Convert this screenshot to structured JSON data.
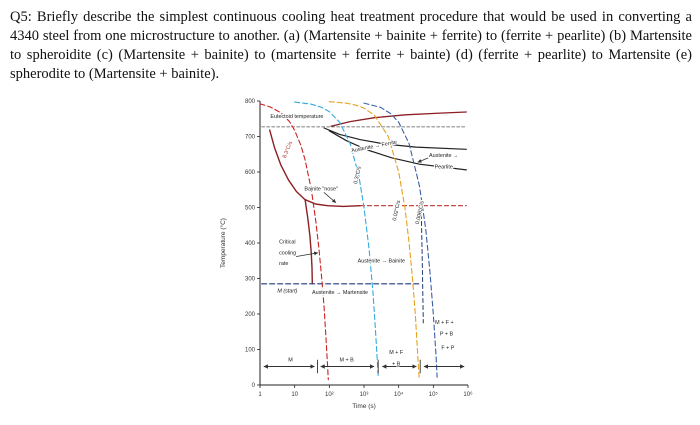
{
  "question": {
    "text": "Q5: Briefly describe the simplest continuous cooling heat treatment procedure that would be used in converting a 4340 steel from one microstructure to another. (a) (Martensite + bainite + ferrite) to (ferrite + pearlite) (b) Martensite to spheroidite (c) (Martensite + bainite) to (martensite + ferrite + bainte) (d) (ferrite + pearlite) to Martensite (e) spherodite to (Martensite + bainite)."
  },
  "chart_data": {
    "type": "line",
    "title": "",
    "xlabel": "Time (s)",
    "ylabel": "Temperature (°C)",
    "x_scale": "log",
    "xlim_log": [
      0,
      6
    ],
    "ylim": [
      0,
      800
    ],
    "x_tick_labels": [
      "1",
      "10",
      "10²",
      "10³",
      "10⁴",
      "10⁵",
      "10⁶"
    ],
    "y_ticks": [
      0,
      100,
      200,
      300,
      400,
      500,
      600,
      700,
      800
    ],
    "grid": false,
    "series": [
      {
        "name": "eutectoid-line",
        "color": "#555555",
        "width": 0.8,
        "dash": "3 2",
        "points": [
          [
            0.05,
            727
          ],
          [
            5.95,
            727
          ]
        ]
      },
      {
        "name": "a3-ferrite-curve",
        "color": "#8b1f24",
        "width": 1.3,
        "points": [
          [
            2.05,
            729
          ],
          [
            2.6,
            742
          ],
          [
            3.3,
            753
          ],
          [
            4.2,
            761
          ],
          [
            5.2,
            766
          ],
          [
            5.95,
            769
          ]
        ]
      },
      {
        "name": "ferrite-start-curve",
        "color": "#222222",
        "width": 1.2,
        "points": [
          [
            1.85,
            724
          ],
          [
            2.3,
            706
          ],
          [
            2.9,
            691
          ],
          [
            3.6,
            679
          ],
          [
            4.5,
            670
          ],
          [
            5.95,
            664
          ]
        ]
      },
      {
        "name": "pearlite-start-curve",
        "color": "#222222",
        "width": 1.2,
        "points": [
          [
            2.0,
            716
          ],
          [
            2.5,
            688
          ],
          [
            3.1,
            662
          ],
          [
            3.8,
            640
          ],
          [
            4.6,
            622
          ],
          [
            5.95,
            606
          ]
        ]
      },
      {
        "name": "bainite-nose-curve",
        "color": "#8b1f24",
        "width": 1.4,
        "points": [
          [
            0.28,
            718
          ],
          [
            0.42,
            668
          ],
          [
            0.6,
            620
          ],
          [
            0.82,
            578
          ],
          [
            1.05,
            545
          ],
          [
            1.3,
            522
          ],
          [
            1.6,
            510
          ],
          [
            1.95,
            505
          ],
          [
            2.4,
            503
          ],
          [
            2.9,
            505
          ]
        ]
      },
      {
        "name": "bainite-left-boundary",
        "color": "#8b1f24",
        "width": 1.4,
        "points": [
          [
            1.3,
            522
          ],
          [
            1.38,
            470
          ],
          [
            1.44,
            420
          ],
          [
            1.48,
            370
          ],
          [
            1.5,
            330
          ],
          [
            1.51,
            288
          ]
        ]
      },
      {
        "name": "bainite-right-dashed",
        "color": "#c03030",
        "width": 1.1,
        "dash": "4 3",
        "points": [
          [
            2.9,
            505
          ],
          [
            5.95,
            505
          ]
        ]
      },
      {
        "name": "ms-line",
        "color": "#1f3a7a",
        "width": 1.2,
        "dash": "5 3",
        "points": [
          [
            0.05,
            285
          ],
          [
            4.62,
            285
          ]
        ]
      },
      {
        "name": "fp-boundary-vertical",
        "color": "#1f3a7a",
        "width": 1.0,
        "dash": "4 3",
        "points": [
          [
            4.65,
            500
          ],
          [
            4.68,
            360
          ],
          [
            4.71,
            175
          ]
        ]
      },
      {
        "name": "cooling-rate-8.3",
        "color": "#cc2222",
        "width": 1.1,
        "dash": "5 3",
        "points": [
          [
            0,
            792
          ],
          [
            0.3,
            783
          ],
          [
            0.6,
            767
          ],
          [
            0.85,
            742
          ],
          [
            1.0,
            717
          ],
          [
            1.18,
            675
          ],
          [
            1.3,
            634
          ],
          [
            1.48,
            551
          ],
          [
            1.6,
            468
          ],
          [
            1.7,
            385
          ],
          [
            1.78,
            302
          ],
          [
            1.85,
            219
          ],
          [
            1.9,
            136
          ],
          [
            1.95,
            53
          ],
          [
            1.97,
            15
          ]
        ]
      },
      {
        "name": "cooling-rate-0.3",
        "color": "#33aadd",
        "width": 1.1,
        "dash": "5 3",
        "points": [
          [
            1.0,
            797
          ],
          [
            1.48,
            791
          ],
          [
            1.78,
            782
          ],
          [
            2.0,
            770
          ],
          [
            2.3,
            740
          ],
          [
            2.6,
            680
          ],
          [
            2.85,
            590
          ],
          [
            3.0,
            500
          ],
          [
            3.15,
            380
          ],
          [
            3.26,
            260
          ],
          [
            3.34,
            140
          ],
          [
            3.41,
            25
          ]
        ]
      },
      {
        "name": "cooling-rate-0.02",
        "color": "#e8a020",
        "width": 1.1,
        "dash": "5 3",
        "points": [
          [
            2.0,
            798
          ],
          [
            2.48,
            794
          ],
          [
            2.78,
            788
          ],
          [
            3.0,
            780
          ],
          [
            3.3,
            760
          ],
          [
            3.7,
            700
          ],
          [
            4.0,
            600
          ],
          [
            4.18,
            500
          ],
          [
            4.3,
            400
          ],
          [
            4.4,
            300
          ],
          [
            4.48,
            200
          ],
          [
            4.54,
            100
          ],
          [
            4.59,
            22
          ]
        ]
      },
      {
        "name": "cooling-rate-0.006",
        "color": "#3a5fa8",
        "width": 1.1,
        "dash": "5 3",
        "points": [
          [
            3.0,
            794
          ],
          [
            3.48,
            782
          ],
          [
            3.78,
            764
          ],
          [
            4.0,
            740
          ],
          [
            4.3,
            680
          ],
          [
            4.6,
            560
          ],
          [
            4.78,
            440
          ],
          [
            4.9,
            320
          ],
          [
            5.0,
            200
          ],
          [
            5.08,
            80
          ],
          [
            5.11,
            22
          ]
        ]
      },
      {
        "name": "region-line-m",
        "color": "#333333",
        "width": 0.9,
        "arrows": "both",
        "points": [
          [
            0.12,
            52
          ],
          [
            1.56,
            52
          ]
        ]
      },
      {
        "name": "region-line-mb",
        "color": "#333333",
        "width": 0.9,
        "arrows": "both",
        "points": [
          [
            1.76,
            52
          ],
          [
            3.28,
            52
          ]
        ]
      },
      {
        "name": "region-line-mfb",
        "color": "#333333",
        "width": 0.9,
        "arrows": "both",
        "points": [
          [
            3.54,
            52
          ],
          [
            4.5,
            52
          ]
        ]
      },
      {
        "name": "region-line-fp",
        "color": "#333333",
        "width": 0.9,
        "arrows": "both",
        "points": [
          [
            4.74,
            52
          ],
          [
            5.88,
            52
          ]
        ]
      },
      {
        "name": "region-tick-1",
        "color": "#333333",
        "width": 0.9,
        "points": [
          [
            1.66,
            34
          ],
          [
            1.66,
            70
          ]
        ]
      },
      {
        "name": "region-tick-2",
        "color": "#333333",
        "width": 0.9,
        "points": [
          [
            3.41,
            34
          ],
          [
            3.41,
            70
          ]
        ]
      },
      {
        "name": "region-tick-3",
        "color": "#333333",
        "width": 0.9,
        "points": [
          [
            4.62,
            34
          ],
          [
            4.62,
            70
          ]
        ]
      },
      {
        "name": "bainite-nose-arrow",
        "color": "#333333",
        "width": 0.8,
        "arrows": "end",
        "points": [
          [
            1.85,
            542
          ],
          [
            2.18,
            514
          ]
        ]
      },
      {
        "name": "critical-rate-arrow",
        "color": "#333333",
        "width": 0.8,
        "arrows": "end",
        "points": [
          [
            1.05,
            362
          ],
          [
            1.66,
            372
          ]
        ]
      },
      {
        "name": "pearlite-arrow",
        "color": "#333333",
        "width": 0.8,
        "arrows": "end",
        "points": [
          [
            4.86,
            640
          ],
          [
            4.56,
            628
          ]
        ]
      }
    ],
    "labels": [
      {
        "text": "Eutectoid temperature",
        "x": 0.3,
        "y": 752,
        "size": 5.4,
        "anchor": "start",
        "halo": true
      },
      {
        "text": "8.3°C/s",
        "x": 0.74,
        "y": 638,
        "rot": -68,
        "size": 5.4,
        "color": "#b03030",
        "halo": true
      },
      {
        "text": "0.3°C/s",
        "x": 2.8,
        "y": 566,
        "rot": -78,
        "size": 5.4,
        "halo": true
      },
      {
        "text": "0.02°C/s",
        "x": 3.92,
        "y": 462,
        "rot": -78,
        "size": 5.4,
        "halo": true
      },
      {
        "text": "0.006°C/s",
        "x": 4.58,
        "y": 452,
        "rot": -78,
        "size": 5.4,
        "halo": true
      },
      {
        "text": "Bainite \"nose\"",
        "x": 1.28,
        "y": 548,
        "size": 5.4,
        "anchor": "start",
        "halo": true
      },
      {
        "text": "Critical",
        "x": 0.55,
        "y": 398,
        "size": 5.4,
        "anchor": "start",
        "halo": true
      },
      {
        "text": "cooling",
        "x": 0.55,
        "y": 368,
        "size": 5.4,
        "anchor": "start",
        "halo": true
      },
      {
        "text": "rate",
        "x": 0.55,
        "y": 338,
        "size": 5.4,
        "anchor": "start",
        "halo": true
      },
      {
        "text": "M (start)",
        "x": 0.5,
        "y": 260,
        "size": 5.4,
        "anchor": "start",
        "italic": true,
        "halo": true
      },
      {
        "text": "Austenite → Martensite",
        "x": 1.5,
        "y": 256,
        "size": 5.4,
        "anchor": "start",
        "halo": true
      },
      {
        "text": "Austenite → Bainite",
        "x": 3.5,
        "y": 345,
        "size": 5.4,
        "anchor": "middle",
        "halo": true
      },
      {
        "text": "Austenite → Ferrite",
        "x": 3.3,
        "y": 668,
        "rot": -11,
        "size": 5.4,
        "anchor": "middle",
        "halo": true
      },
      {
        "text": "Austenite →",
        "x": 5.3,
        "y": 642,
        "size": 5.4,
        "anchor": "middle",
        "halo": true
      },
      {
        "text": "Pearlite",
        "x": 5.3,
        "y": 610,
        "size": 5.4,
        "anchor": "middle",
        "halo": true
      },
      {
        "text": "M + F +",
        "x": 5.32,
        "y": 172,
        "size": 5.4,
        "anchor": "middle",
        "halo": true
      },
      {
        "text": "P + B",
        "x": 5.38,
        "y": 140,
        "size": 5.4,
        "anchor": "middle",
        "halo": true
      },
      {
        "text": "F + P",
        "x": 5.42,
        "y": 100,
        "size": 5.4,
        "anchor": "middle",
        "halo": true
      },
      {
        "text": "M + F",
        "x": 3.93,
        "y": 88,
        "size": 5.4,
        "anchor": "middle",
        "halo": true
      },
      {
        "text": "+ B",
        "x": 3.93,
        "y": 55,
        "size": 5.4,
        "anchor": "middle",
        "halo": true
      },
      {
        "text": "M",
        "x": 0.88,
        "y": 66,
        "size": 5.4,
        "anchor": "middle",
        "halo": true
      },
      {
        "text": "M + B",
        "x": 2.5,
        "y": 66,
        "size": 5.4,
        "anchor": "middle",
        "halo": true
      }
    ]
  }
}
